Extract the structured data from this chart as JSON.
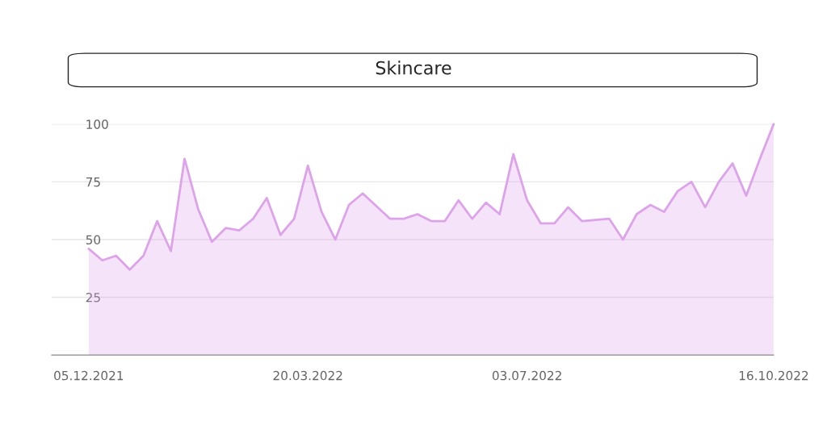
{
  "chart_data": {
    "type": "area",
    "title": "Skincare",
    "categories": [
      "05.12.2021",
      null,
      null,
      null,
      null,
      null,
      null,
      null,
      null,
      null,
      null,
      null,
      null,
      null,
      null,
      null,
      "20.03.2022",
      null,
      null,
      null,
      null,
      null,
      null,
      null,
      null,
      null,
      null,
      null,
      null,
      null,
      null,
      null,
      "03.07.2022",
      null,
      null,
      null,
      null,
      null,
      null,
      null,
      null,
      null,
      null,
      null,
      null,
      null,
      null,
      null,
      null,
      null,
      "16.10.2022"
    ],
    "series": [
      {
        "color": "#dda3ea",
        "values": [
          46,
          41,
          43,
          37,
          43,
          58,
          45,
          85,
          63,
          49,
          55,
          54,
          59,
          68,
          52,
          59,
          82,
          62,
          50,
          65,
          70,
          64.5,
          59,
          59,
          61,
          58,
          58,
          67,
          59,
          66,
          61,
          87,
          67,
          57,
          57,
          64,
          58,
          58.5,
          59,
          50,
          61,
          65,
          62,
          71,
          75,
          64,
          75,
          83,
          69,
          85,
          100
        ]
      }
    ],
    "ylim": [
      0,
      100
    ],
    "yticks": [
      25,
      50,
      75,
      100
    ],
    "grid": "y",
    "legend": false
  }
}
